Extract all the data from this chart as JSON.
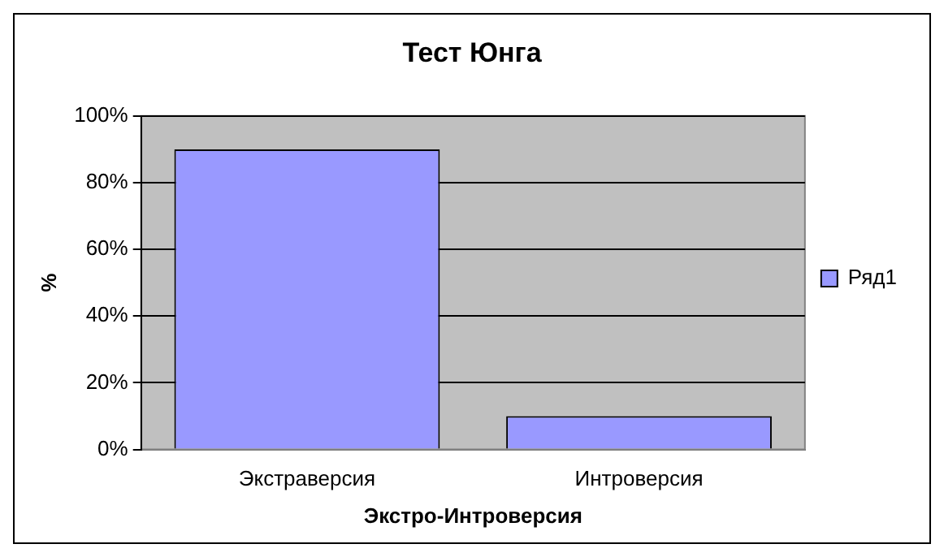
{
  "chart_data": {
    "type": "bar",
    "title": "Тест Юнга",
    "xlabel": "Экстро-Интроверсия",
    "ylabel": "%",
    "categories": [
      "Экстраверсия",
      "Интроверсия"
    ],
    "series": [
      {
        "name": "Ряд1",
        "color": "#9999ff",
        "values": [
          90,
          10
        ]
      }
    ],
    "ylim": [
      0,
      100
    ],
    "yticks": [
      {
        "value": 0,
        "label": "0%"
      },
      {
        "value": 20,
        "label": "20%"
      },
      {
        "value": 40,
        "label": "40%"
      },
      {
        "value": 60,
        "label": "60%"
      },
      {
        "value": 80,
        "label": "80%"
      },
      {
        "value": 100,
        "label": "100%"
      }
    ],
    "grid": "y",
    "legend": "right"
  }
}
